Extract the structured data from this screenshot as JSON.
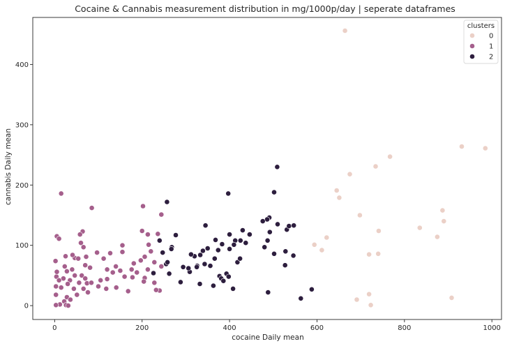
{
  "chart_data": {
    "type": "scatter",
    "title": "Cocaine & Cannabis measurement distribution in mg/1000p/day | seperate dataframes",
    "xlabel": "cocaine Daily mean",
    "ylabel": "cannabis Daily mean",
    "xlim": [
      -50,
      1022
    ],
    "ylim": [
      -23,
      478
    ],
    "xticks": [
      0,
      200,
      400,
      600,
      800,
      1000
    ],
    "yticks": [
      0,
      100,
      200,
      300,
      400
    ],
    "grid": false,
    "legend": {
      "title": "clusters",
      "placement": "top-right"
    },
    "series": [
      {
        "name": "0",
        "color": "#ebd0c7",
        "points": [
          [
            664,
            456
          ],
          [
            931,
            264
          ],
          [
            985,
            261
          ],
          [
            767,
            247
          ],
          [
            734,
            231
          ],
          [
            675,
            218
          ],
          [
            645,
            191
          ],
          [
            651,
            179
          ],
          [
            887,
            158
          ],
          [
            698,
            150
          ],
          [
            890,
            140
          ],
          [
            835,
            129
          ],
          [
            741,
            124
          ],
          [
            622,
            113
          ],
          [
            875,
            114
          ],
          [
            594,
            101
          ],
          [
            611,
            92
          ],
          [
            719,
            85
          ],
          [
            740,
            86
          ],
          [
            719,
            19
          ],
          [
            691,
            10
          ],
          [
            723,
            1
          ],
          [
            908,
            13
          ]
        ]
      },
      {
        "name": "1",
        "color": "#a55f8c",
        "points": [
          [
            15,
            186
          ],
          [
            85,
            162
          ],
          [
            202,
            165
          ],
          [
            244,
            151
          ],
          [
            64,
            123
          ],
          [
            200,
            124
          ],
          [
            58,
            118
          ],
          [
            213,
            118
          ],
          [
            5,
            115
          ],
          [
            236,
            119
          ],
          [
            10,
            111
          ],
          [
            60,
            104
          ],
          [
            155,
            100
          ],
          [
            66,
            97
          ],
          [
            215,
            101
          ],
          [
            97,
            88
          ],
          [
            127,
            87
          ],
          [
            155,
            89
          ],
          [
            206,
            81
          ],
          [
            112,
            78
          ],
          [
            25,
            82
          ],
          [
            46,
            79
          ],
          [
            41,
            84
          ],
          [
            72,
            81
          ],
          [
            2,
            74
          ],
          [
            140,
            65
          ],
          [
            54,
            78
          ],
          [
            197,
            75
          ],
          [
            181,
            70
          ],
          [
            160,
            48
          ],
          [
            244,
            65
          ],
          [
            70,
            67
          ],
          [
            23,
            65
          ],
          [
            40,
            60
          ],
          [
            120,
            60
          ],
          [
            150,
            58
          ],
          [
            28,
            57
          ],
          [
            81,
            63
          ],
          [
            46,
            50
          ],
          [
            62,
            50
          ],
          [
            70,
            45
          ],
          [
            105,
            42
          ],
          [
            120,
            44
          ],
          [
            178,
            47
          ],
          [
            4,
            48
          ],
          [
            20,
            45
          ],
          [
            35,
            42
          ],
          [
            56,
            38
          ],
          [
            74,
            37
          ],
          [
            100,
            32
          ],
          [
            118,
            28
          ],
          [
            141,
            30
          ],
          [
            168,
            24
          ],
          [
            206,
            46
          ],
          [
            228,
            38
          ],
          [
            3,
            32
          ],
          [
            15,
            30
          ],
          [
            44,
            28
          ],
          [
            66,
            28
          ],
          [
            76,
            22
          ],
          [
            3,
            18
          ],
          [
            28,
            14
          ],
          [
            36,
            10
          ],
          [
            51,
            18
          ],
          [
            22,
            7
          ],
          [
            12,
            2
          ],
          [
            3,
            1
          ],
          [
            26,
            1
          ],
          [
            31,
            0
          ],
          [
            204,
            40
          ],
          [
            240,
            25
          ],
          [
            232,
            26
          ],
          [
            10,
            42
          ],
          [
            188,
            55
          ],
          [
            213,
            60
          ],
          [
            84,
            38
          ],
          [
            30,
            36
          ],
          [
            220,
            90
          ],
          [
            133,
            55
          ],
          [
            176,
            60
          ],
          [
            228,
            72
          ],
          [
            5,
            56
          ]
        ]
      },
      {
        "name": "2",
        "color": "#2d1e3e",
        "points": [
          [
            509,
            230
          ],
          [
            257,
            172
          ],
          [
            502,
            188
          ],
          [
            397,
            186
          ],
          [
            491,
            146
          ],
          [
            486,
            143
          ],
          [
            476,
            140
          ],
          [
            492,
            122
          ],
          [
            345,
            133
          ],
          [
            510,
            135
          ],
          [
            531,
            126
          ],
          [
            536,
            132
          ],
          [
            547,
            133
          ],
          [
            430,
            125
          ],
          [
            400,
            118
          ],
          [
            446,
            118
          ],
          [
            413,
            108
          ],
          [
            480,
            97
          ],
          [
            528,
            90
          ],
          [
            437,
            104
          ],
          [
            425,
            108
          ],
          [
            368,
            109
          ],
          [
            410,
            101
          ],
          [
            383,
            102
          ],
          [
            400,
            94
          ],
          [
            374,
            92
          ],
          [
            350,
            95
          ],
          [
            339,
            91
          ],
          [
            333,
            84
          ],
          [
            366,
            78
          ],
          [
            268,
            97
          ],
          [
            267,
            94
          ],
          [
            320,
            82
          ],
          [
            312,
            85
          ],
          [
            356,
            66
          ],
          [
            326,
            66
          ],
          [
            343,
            69
          ],
          [
            393,
            53
          ],
          [
            418,
            72
          ],
          [
            424,
            78
          ],
          [
            487,
            108
          ],
          [
            502,
            86
          ],
          [
            277,
            117
          ],
          [
            240,
            108
          ],
          [
            247,
            88
          ],
          [
            255,
            69
          ],
          [
            258,
            72
          ],
          [
            294,
            64
          ],
          [
            309,
            56
          ],
          [
            306,
            62
          ],
          [
            325,
            64
          ],
          [
            377,
            49
          ],
          [
            381,
            45
          ],
          [
            386,
            41
          ],
          [
            398,
            48
          ],
          [
            288,
            39
          ],
          [
            332,
            36
          ],
          [
            363,
            33
          ],
          [
            408,
            28
          ],
          [
            488,
            22
          ],
          [
            527,
            67
          ],
          [
            546,
            83
          ],
          [
            588,
            27
          ],
          [
            563,
            12
          ],
          [
            262,
            53
          ],
          [
            226,
            54
          ]
        ]
      }
    ]
  }
}
